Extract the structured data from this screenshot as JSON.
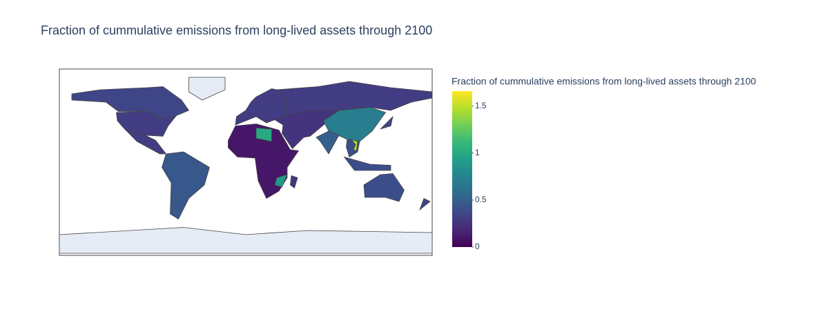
{
  "chart_data": {
    "type": "choropleth",
    "title": "Fraction of cummulative emissions from long-lived assets through 2100",
    "colorbar_title": "Fraction of cummulative emissions from long-lived assets through 2100",
    "values": [
      0.35,
      0.3,
      0.3,
      0.45,
      0.1,
      1.0,
      0.9,
      0.25,
      0.3,
      0.3,
      0.25,
      0.7,
      0.5,
      0.4,
      1.45,
      0.4,
      0.35,
      0.4,
      0.35
    ],
    "zlim": [
      0,
      1.66
    ],
    "zticks": [
      0,
      0.5,
      1,
      1.5
    ],
    "colorscale": [
      "#440154",
      "#482878",
      "#3e4989",
      "#31688e",
      "#26828e",
      "#1f9e89",
      "#35b779",
      "#6ece58",
      "#b5de2b",
      "#fde725"
    ]
  }
}
